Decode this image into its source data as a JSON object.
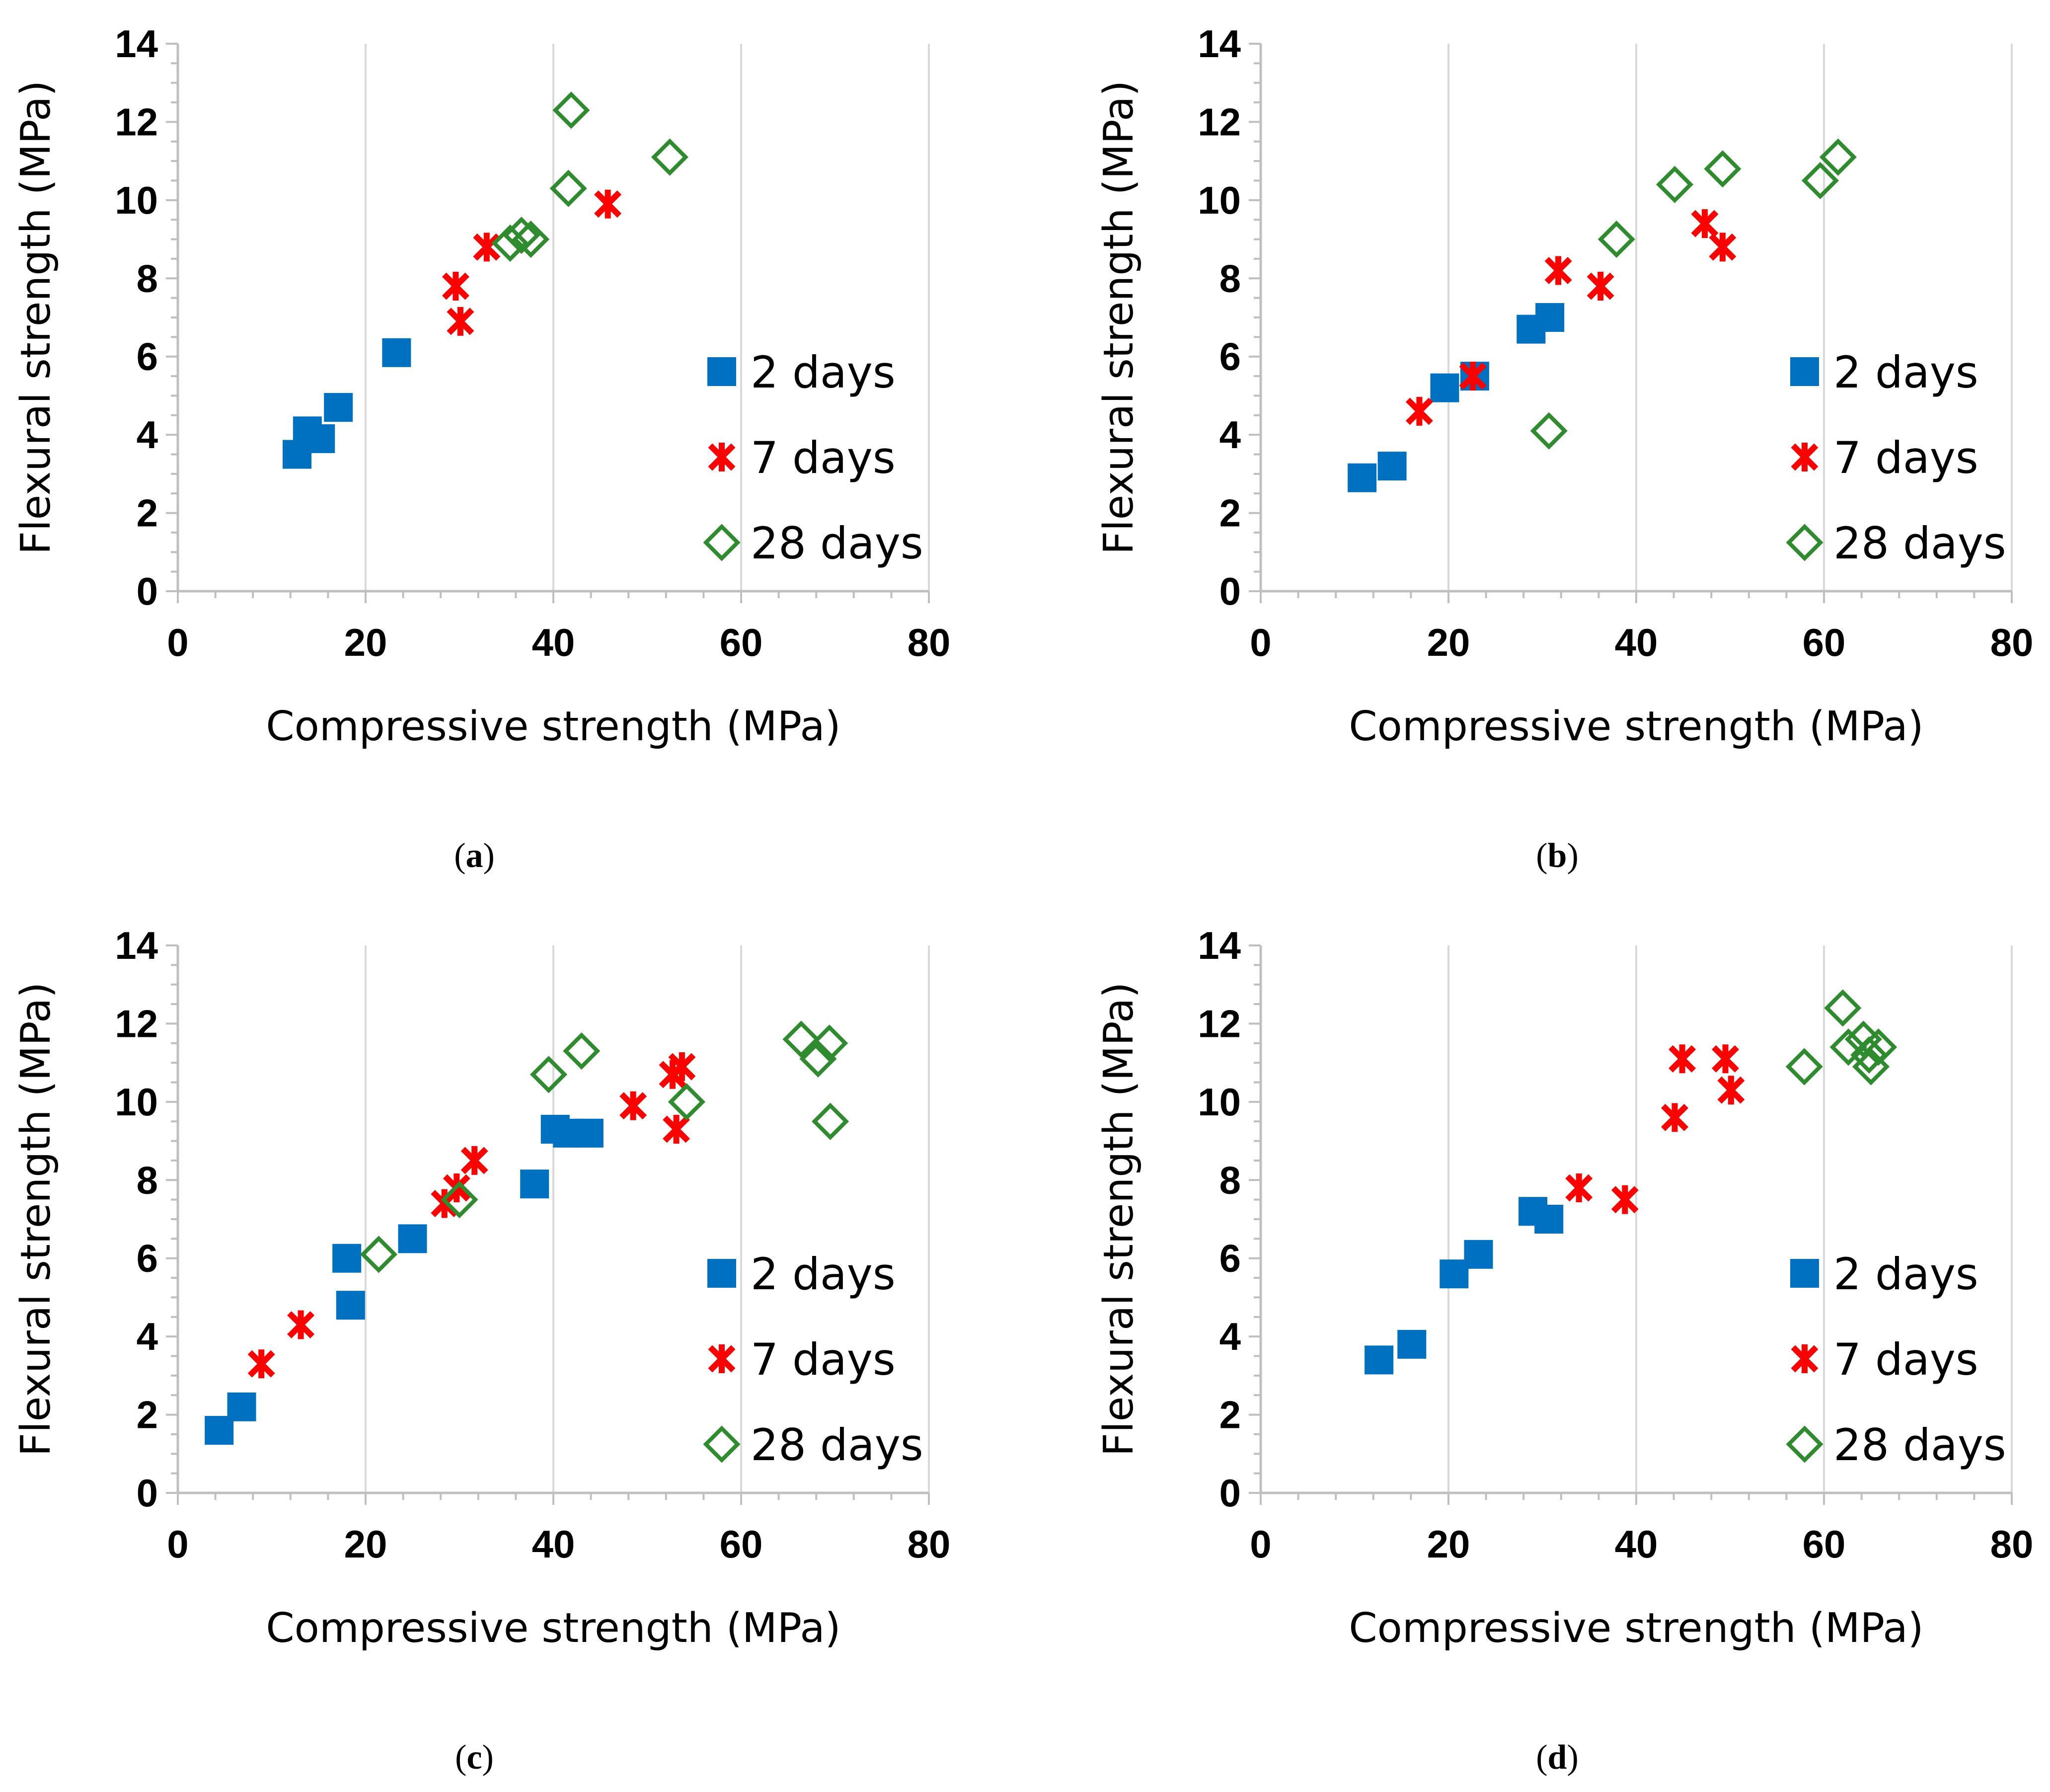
{
  "figure": {
    "captions": [
      "a",
      "b",
      "c",
      "d"
    ]
  },
  "colors": {
    "series_2d": "#0070c0",
    "series_7d": "#ff0000",
    "series_28d": "#2e8b2e"
  },
  "chart_data": [
    {
      "panel": "a",
      "type": "scatter",
      "xlabel": "Compressive strength (MPa)",
      "ylabel": "Flexural strength  (MPa)",
      "xlim": [
        0,
        80
      ],
      "ylim": [
        0,
        14
      ],
      "xticks": [
        0,
        20,
        40,
        60,
        80
      ],
      "yticks": [
        0,
        2,
        4,
        6,
        8,
        10,
        12,
        14
      ],
      "grid": "vertical",
      "legend": "right",
      "series": [
        {
          "name": "2 days",
          "marker": "square",
          "x": [
            12.7,
            13.8,
            15.2,
            17.1,
            23.3
          ],
          "y": [
            3.5,
            4.1,
            3.9,
            4.7,
            6.1
          ]
        },
        {
          "name": "7 days",
          "marker": "star",
          "x": [
            29.6,
            30.1,
            32.9,
            45.8
          ],
          "y": [
            7.8,
            6.9,
            8.8,
            9.9
          ]
        },
        {
          "name": "28 days",
          "marker": "diamond",
          "x": [
            35.4,
            36.6,
            37.6,
            41.6,
            41.9,
            52.4
          ],
          "y": [
            8.9,
            9.1,
            9.0,
            10.3,
            12.3,
            11.1
          ]
        }
      ]
    },
    {
      "panel": "b",
      "type": "scatter",
      "xlabel": "Compressive strength (MPa)",
      "ylabel": "Flexural strength  (MPa)",
      "xlim": [
        0,
        80
      ],
      "ylim": [
        0,
        14
      ],
      "xticks": [
        0,
        20,
        40,
        60,
        80
      ],
      "yticks": [
        0,
        2,
        4,
        6,
        8,
        10,
        12,
        14
      ],
      "grid": "vertical",
      "legend": "right",
      "series": [
        {
          "name": "2 days",
          "marker": "square",
          "x": [
            10.8,
            14.0,
            19.6,
            22.8,
            28.8,
            30.8
          ],
          "y": [
            2.9,
            3.2,
            5.2,
            5.5,
            6.7,
            7.0
          ]
        },
        {
          "name": "7 days",
          "marker": "star",
          "x": [
            16.9,
            22.6,
            31.7,
            36.2,
            47.3,
            49.2
          ],
          "y": [
            4.6,
            5.5,
            8.2,
            7.8,
            9.4,
            8.8
          ]
        },
        {
          "name": "28 days",
          "marker": "diamond",
          "x": [
            30.7,
            37.9,
            44.1,
            49.2,
            59.6,
            61.5
          ],
          "y": [
            4.1,
            9.0,
            10.4,
            10.8,
            10.5,
            11.1
          ]
        }
      ]
    },
    {
      "panel": "c",
      "type": "scatter",
      "xlabel": "Compressive strength (MPa)",
      "ylabel": "Flexural strength  (MPa)",
      "xlim": [
        0,
        80
      ],
      "ylim": [
        0,
        14
      ],
      "xticks": [
        0,
        20,
        40,
        60,
        80
      ],
      "yticks": [
        0,
        2,
        4,
        6,
        8,
        10,
        12,
        14
      ],
      "grid": "vertical",
      "legend": "right",
      "series": [
        {
          "name": "2 days",
          "marker": "square",
          "x": [
            4.4,
            6.8,
            18.0,
            18.4,
            25.0,
            38.0,
            40.2,
            41.5,
            43.8
          ],
          "y": [
            1.6,
            2.2,
            6.0,
            4.8,
            6.5,
            7.9,
            9.3,
            9.2,
            9.2
          ]
        },
        {
          "name": "7 days",
          "marker": "star",
          "x": [
            8.9,
            13.1,
            28.4,
            29.7,
            31.6,
            48.5,
            52.7,
            53.1,
            53.7
          ],
          "y": [
            3.3,
            4.3,
            7.4,
            7.8,
            8.5,
            9.9,
            10.7,
            9.3,
            10.9
          ]
        },
        {
          "name": "28 days",
          "marker": "diamond",
          "x": [
            21.4,
            30.0,
            39.5,
            43.0,
            54.2,
            66.4,
            68.2,
            69.4,
            69.5
          ],
          "y": [
            6.1,
            7.5,
            10.7,
            11.3,
            10.0,
            11.6,
            11.1,
            11.5,
            9.5
          ]
        }
      ]
    },
    {
      "panel": "d",
      "type": "scatter",
      "xlabel": "Compressive strength (MPa)",
      "ylabel": "Flexural strength  (MPa)",
      "xlim": [
        0,
        80
      ],
      "ylim": [
        0,
        14
      ],
      "xticks": [
        0,
        20,
        40,
        60,
        80
      ],
      "yticks": [
        0,
        2,
        4,
        6,
        8,
        10,
        12,
        14
      ],
      "grid": "vertical",
      "legend": "right",
      "series": [
        {
          "name": "2 days",
          "marker": "square",
          "x": [
            12.6,
            16.1,
            20.6,
            23.2,
            29.0,
            30.7
          ],
          "y": [
            3.4,
            3.8,
            5.6,
            6.1,
            7.2,
            7.0
          ]
        },
        {
          "name": "7 days",
          "marker": "star",
          "x": [
            33.9,
            38.8,
            44.1,
            44.9,
            49.5,
            50.1
          ],
          "y": [
            7.8,
            7.5,
            9.6,
            11.1,
            11.1,
            10.3
          ]
        },
        {
          "name": "28 days",
          "marker": "diamond",
          "x": [
            57.9,
            62.0,
            62.6,
            64.2,
            64.8,
            65.0,
            65.8
          ],
          "y": [
            10.9,
            12.4,
            11.4,
            11.6,
            11.2,
            10.9,
            11.4
          ]
        }
      ]
    }
  ]
}
